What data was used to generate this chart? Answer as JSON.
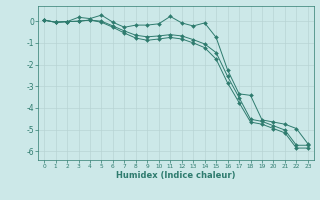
{
  "xlabel": "Humidex (Indice chaleur)",
  "bg_color": "#cce8e8",
  "line_color": "#2e7b6e",
  "grid_color": "#b8d4d4",
  "xlim": [
    -0.5,
    23.5
  ],
  "ylim": [
    -6.4,
    0.7
  ],
  "yticks": [
    0,
    -1,
    -2,
    -3,
    -4,
    -5,
    -6
  ],
  "xticks": [
    0,
    1,
    2,
    3,
    4,
    5,
    6,
    7,
    8,
    9,
    10,
    11,
    12,
    13,
    14,
    15,
    16,
    17,
    18,
    19,
    20,
    21,
    22,
    23
  ],
  "line1_x": [
    0,
    1,
    2,
    3,
    4,
    5,
    6,
    7,
    8,
    9,
    10,
    11,
    12,
    13,
    14,
    15,
    16,
    17,
    18,
    19,
    20,
    21,
    22,
    23
  ],
  "line1_y": [
    0.05,
    -0.05,
    -0.02,
    0.18,
    0.12,
    0.28,
    -0.05,
    -0.28,
    -0.18,
    -0.18,
    -0.12,
    0.22,
    -0.08,
    -0.22,
    -0.08,
    -0.75,
    -2.25,
    -3.35,
    -3.42,
    -4.55,
    -4.65,
    -4.75,
    -4.95,
    -5.65
  ],
  "line2_x": [
    0,
    1,
    2,
    3,
    4,
    5,
    6,
    7,
    8,
    9,
    10,
    11,
    12,
    13,
    14,
    15,
    16,
    17,
    18,
    19,
    20,
    21,
    22,
    23
  ],
  "line2_y": [
    0.05,
    -0.05,
    -0.02,
    0.0,
    0.05,
    0.0,
    -0.22,
    -0.45,
    -0.65,
    -0.72,
    -0.68,
    -0.62,
    -0.68,
    -0.85,
    -1.05,
    -1.45,
    -2.55,
    -3.52,
    -4.52,
    -4.62,
    -4.82,
    -5.02,
    -5.72,
    -5.72
  ],
  "line3_x": [
    0,
    1,
    2,
    3,
    4,
    5,
    6,
    7,
    8,
    9,
    10,
    11,
    12,
    13,
    14,
    15,
    16,
    17,
    18,
    19,
    20,
    21,
    22,
    23
  ],
  "line3_y": [
    0.05,
    -0.05,
    -0.02,
    0.0,
    0.05,
    -0.05,
    -0.28,
    -0.55,
    -0.78,
    -0.88,
    -0.82,
    -0.75,
    -0.82,
    -1.0,
    -1.22,
    -1.75,
    -2.85,
    -3.75,
    -4.65,
    -4.75,
    -4.95,
    -5.15,
    -5.85,
    -5.85
  ]
}
